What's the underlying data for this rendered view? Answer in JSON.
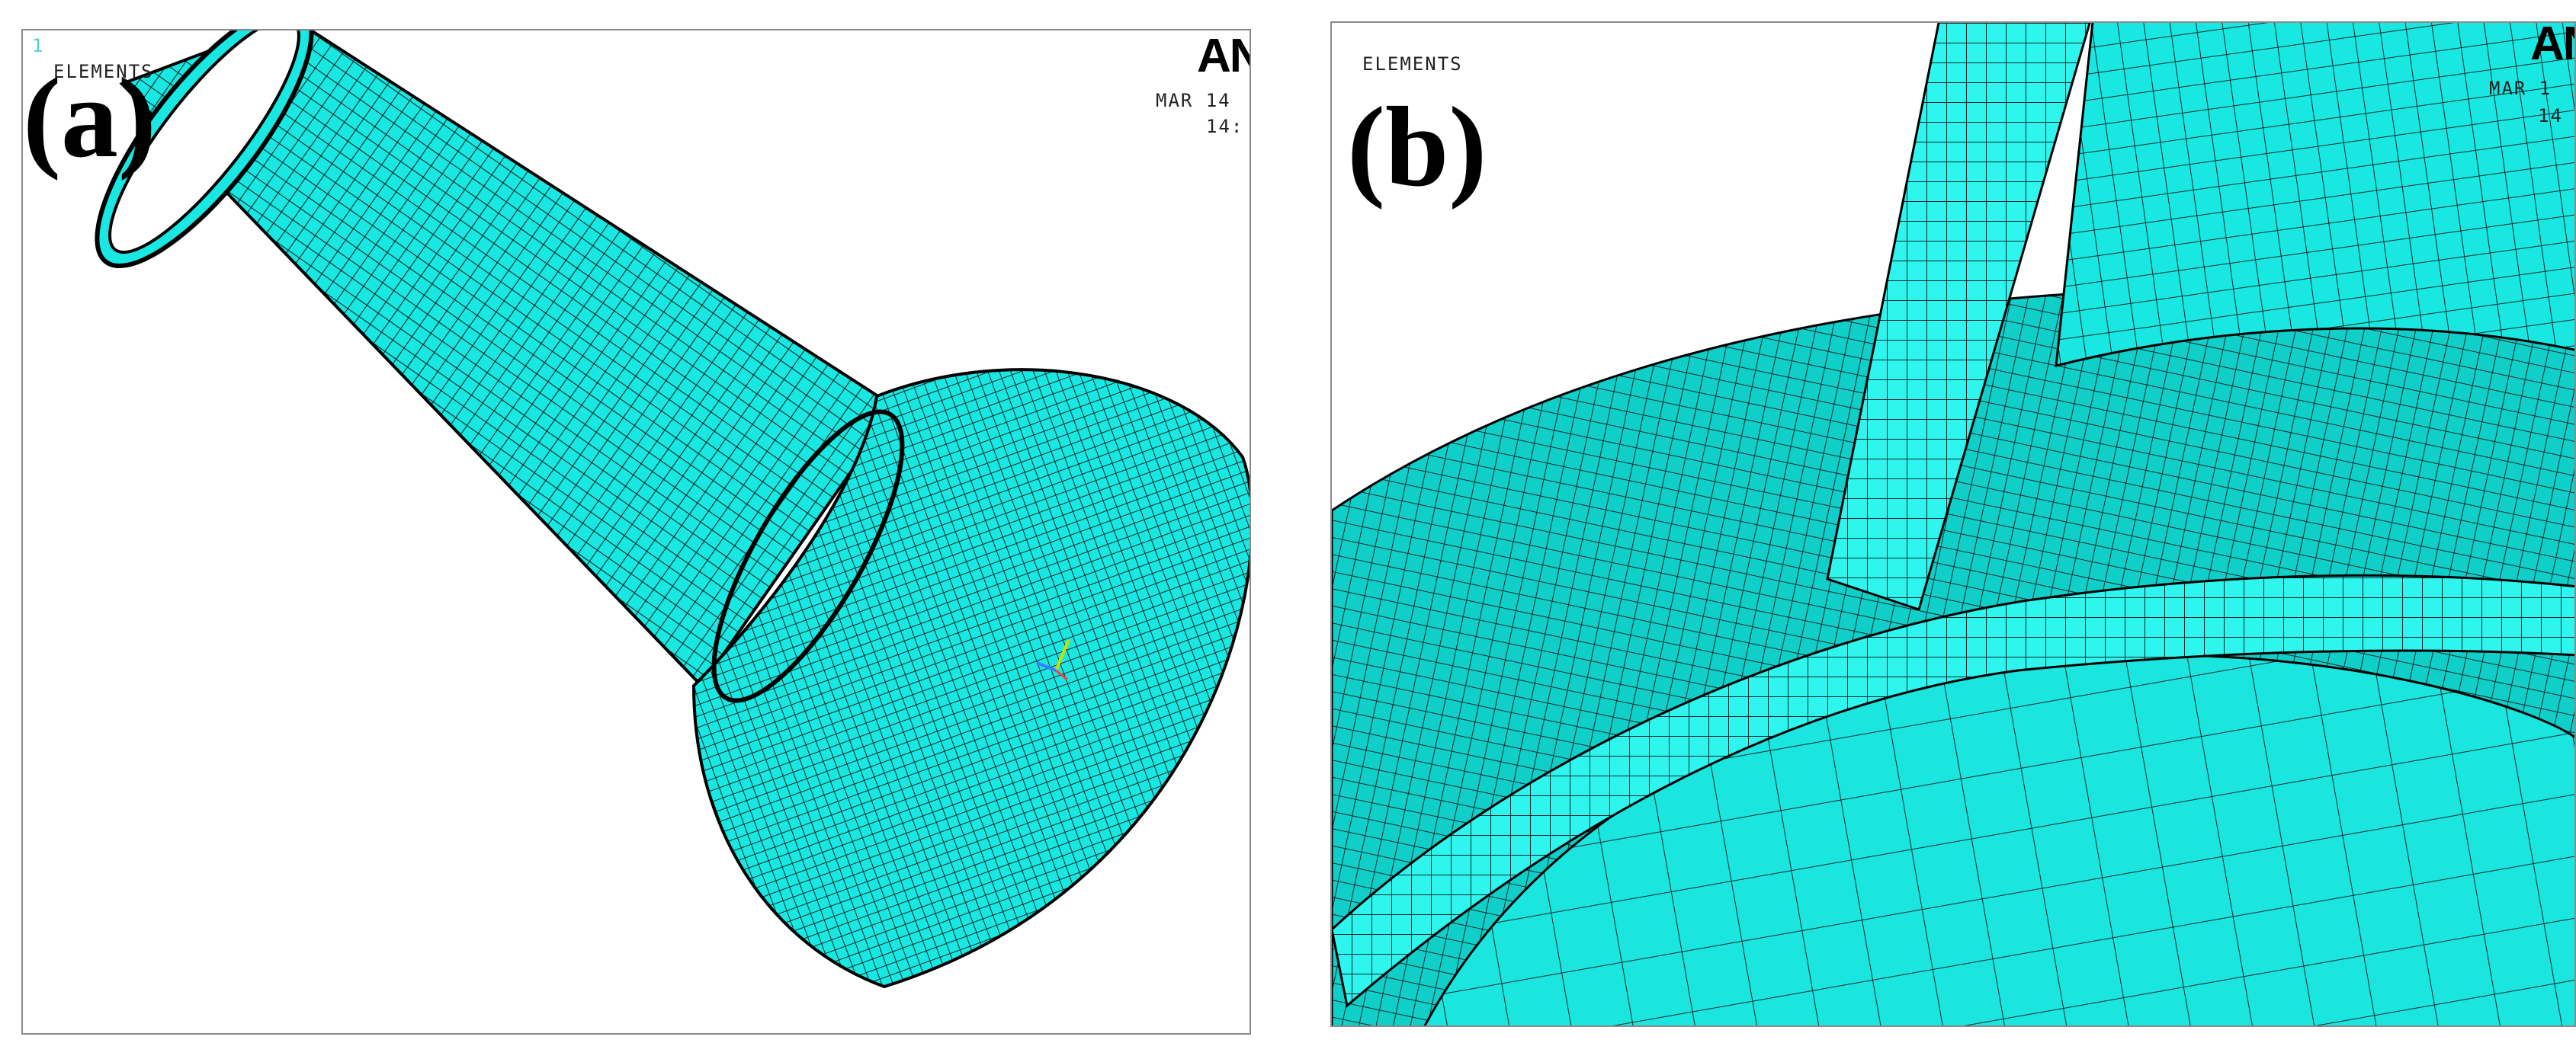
{
  "panels": [
    {
      "letter": "(a)",
      "plot_label": "ELEMENTS",
      "logo": "AN",
      "date": "MAR 14",
      "time": "14:",
      "window_number": "1"
    },
    {
      "letter": "(b)",
      "plot_label": "ELEMENTS",
      "logo": "AN",
      "date": "MAR 1",
      "time": "14"
    }
  ],
  "colors": {
    "mesh_fill": "#19e8e2",
    "mesh_shade": "#0fbfba",
    "mesh_line": "#0b2a2a",
    "background": "#ffffff"
  }
}
